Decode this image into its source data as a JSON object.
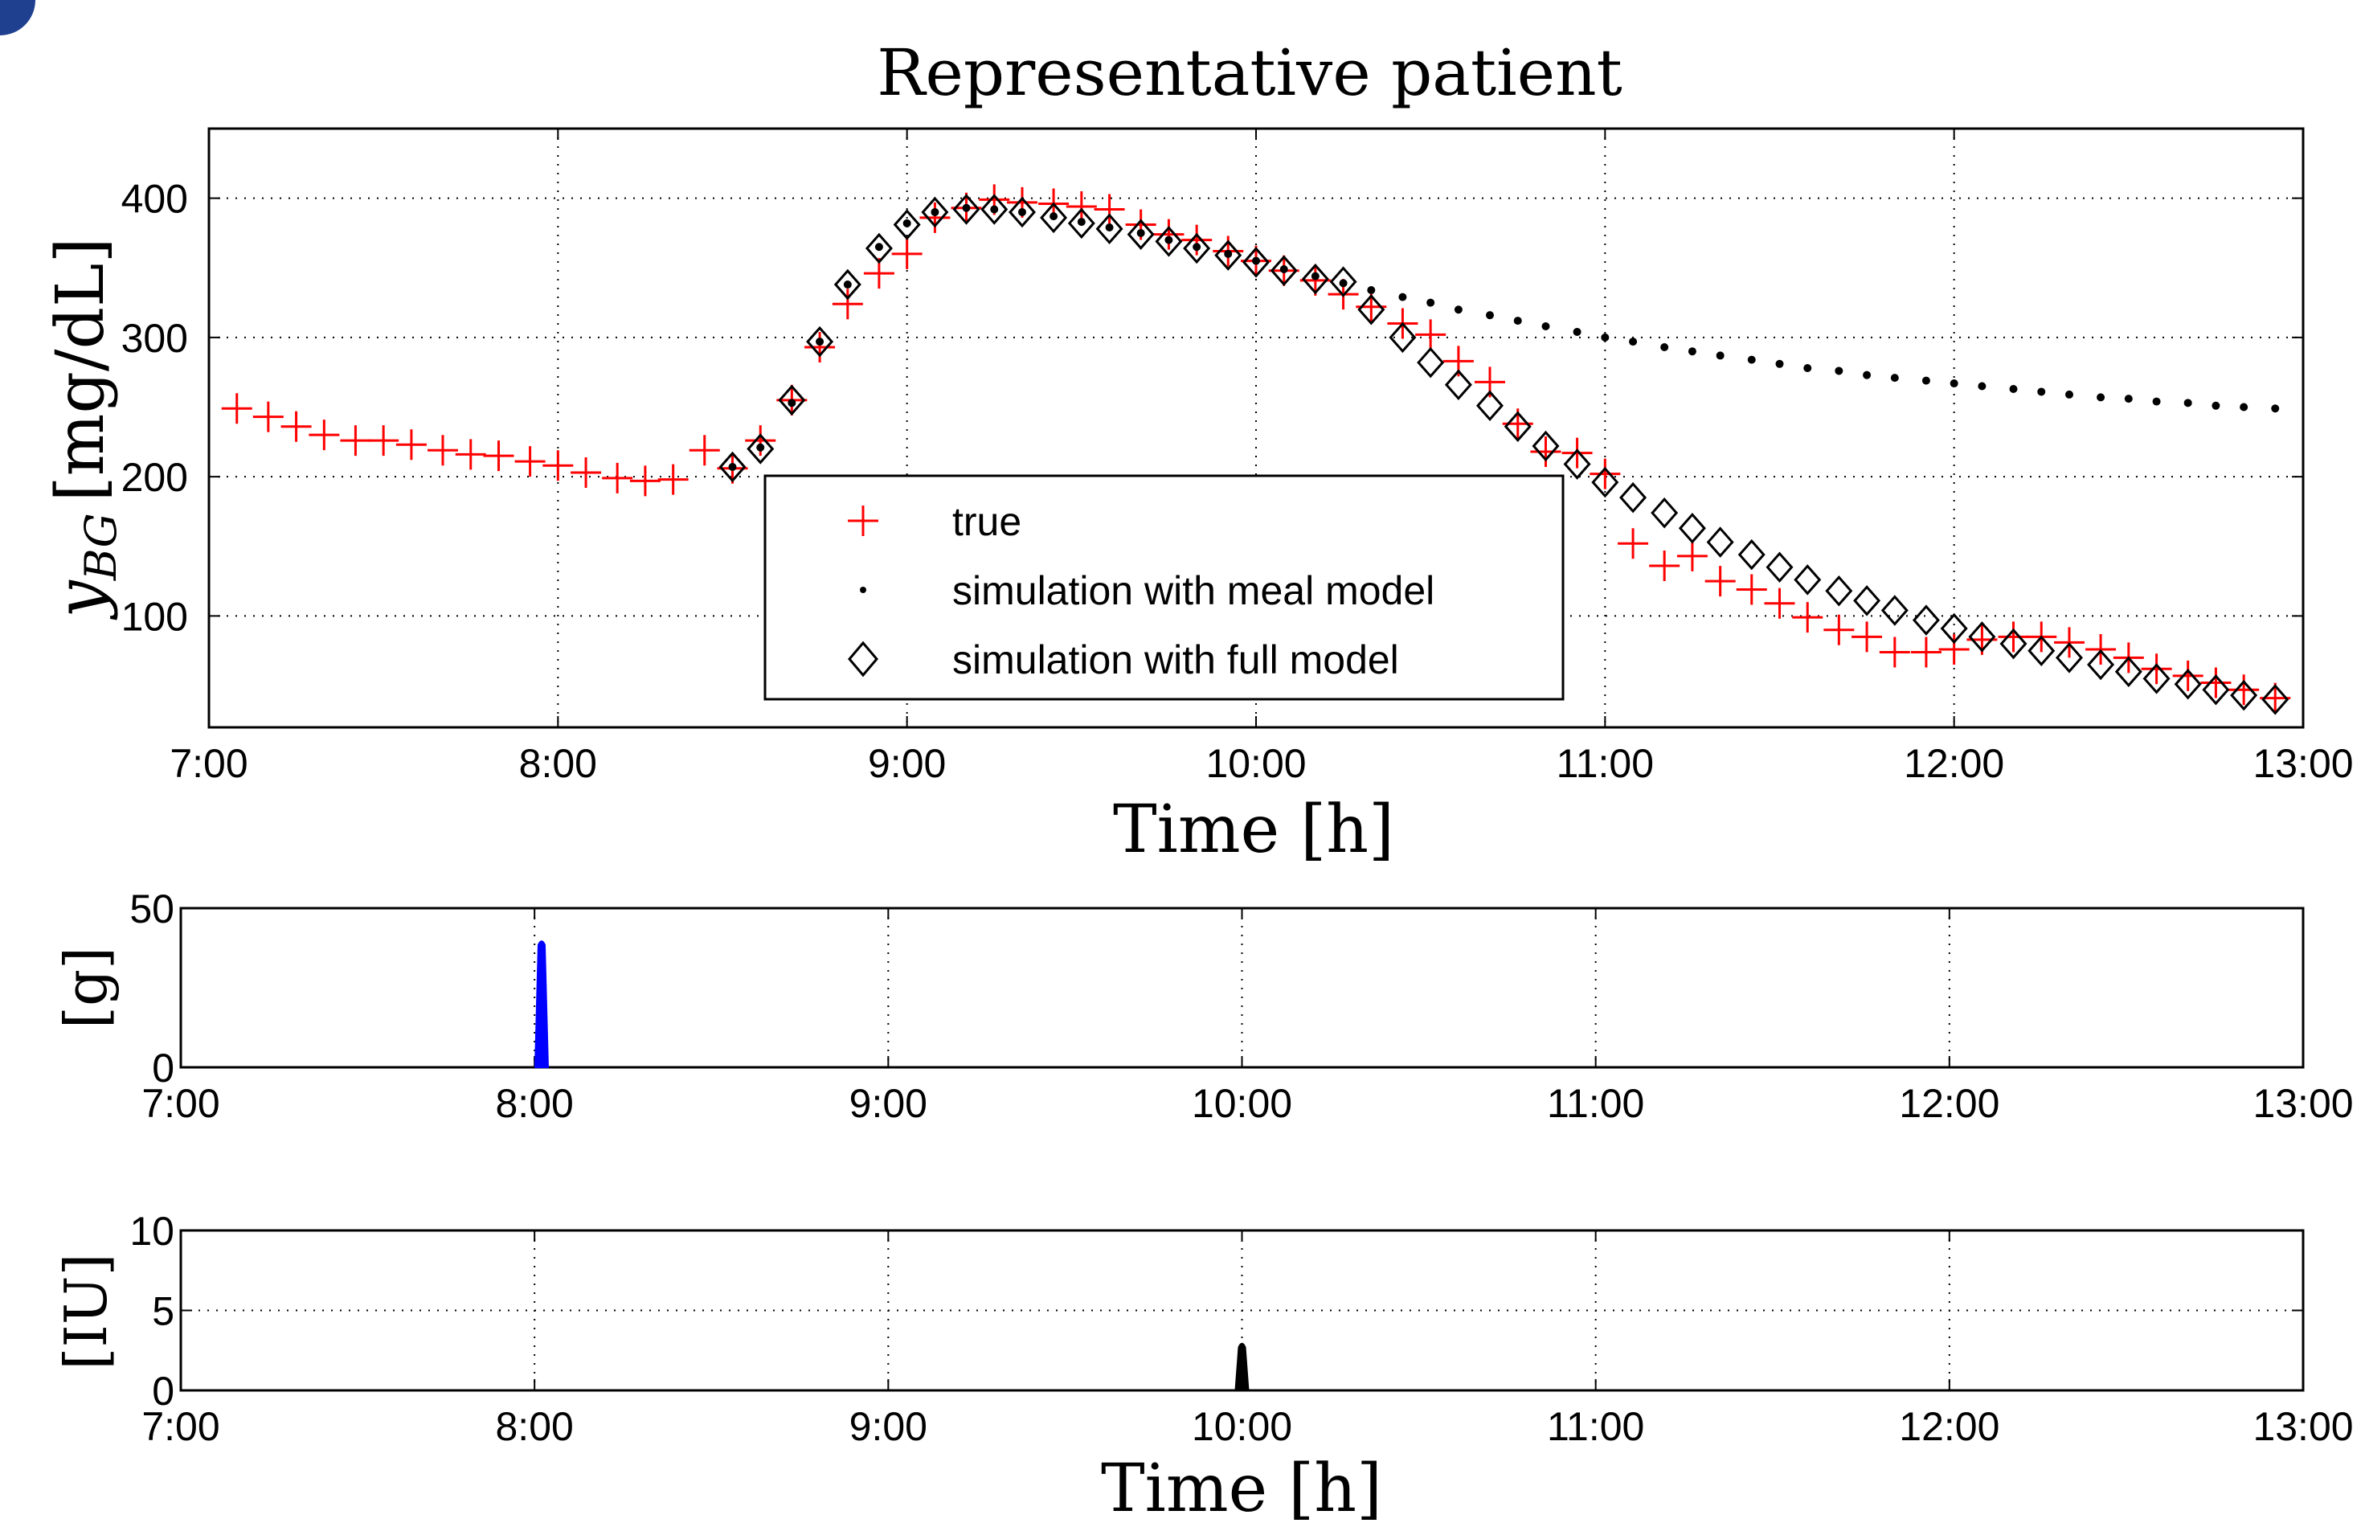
{
  "chart_data": [
    {
      "type": "scatter",
      "title": "Representative patient",
      "xlabel": "Time [h]",
      "ylabel_main": "y",
      "ylabel_sub": "BG",
      "ylabel_unit": "[mg/dL]",
      "x_ticks": [
        7,
        8,
        9,
        10,
        11,
        12,
        13
      ],
      "x_tick_labels": [
        "7:00",
        "8:00",
        "9:00",
        "10:00",
        "11:00",
        "12:00",
        "13:00"
      ],
      "xlim": [
        7,
        13
      ],
      "ylim": [
        20,
        450
      ],
      "y_ticks": [
        100,
        200,
        300,
        400
      ],
      "y_tick_labels": [
        "100",
        "200",
        "300",
        "400"
      ],
      "grid": true,
      "legend_position": "center",
      "series": [
        {
          "name": "true",
          "marker": "plus",
          "color": "#ff0000",
          "points": [
            [
              7.08,
              249
            ],
            [
              7.17,
              243
            ],
            [
              7.25,
              236
            ],
            [
              7.33,
              230
            ],
            [
              7.42,
              226
            ],
            [
              7.5,
              226
            ],
            [
              7.58,
              223
            ],
            [
              7.67,
              219
            ],
            [
              7.75,
              216
            ],
            [
              7.83,
              215
            ],
            [
              7.92,
              211
            ],
            [
              8,
              208
            ],
            [
              8.08,
              203
            ],
            [
              8.17,
              199
            ],
            [
              8.25,
              197
            ],
            [
              8.33,
              198
            ],
            [
              8.42,
              219
            ],
            [
              8.5,
              206
            ],
            [
              8.58,
              226
            ],
            [
              8.67,
              255
            ],
            [
              8.75,
              293
            ],
            [
              8.83,
              324
            ],
            [
              8.92,
              346
            ],
            [
              9,
              360
            ],
            [
              9.08,
              386
            ],
            [
              9.17,
              393
            ],
            [
              9.25,
              399
            ],
            [
              9.33,
              397
            ],
            [
              9.42,
              396
            ],
            [
              9.5,
              394
            ],
            [
              9.58,
              392
            ],
            [
              9.67,
              381
            ],
            [
              9.75,
              374
            ],
            [
              9.83,
              370
            ],
            [
              9.92,
              362
            ],
            [
              10,
              355
            ],
            [
              10.08,
              348
            ],
            [
              10.17,
              341
            ],
            [
              10.25,
              331
            ],
            [
              10.33,
              322
            ],
            [
              10.42,
              310
            ],
            [
              10.5,
              302
            ],
            [
              10.58,
              283
            ],
            [
              10.67,
              268
            ],
            [
              10.75,
              238
            ],
            [
              10.83,
              218
            ],
            [
              10.92,
              217
            ],
            [
              11,
              202
            ],
            [
              11.08,
              152
            ],
            [
              11.17,
              136
            ],
            [
              11.25,
              143
            ],
            [
              11.33,
              125
            ],
            [
              11.42,
              119
            ],
            [
              11.5,
              109
            ],
            [
              11.58,
              99
            ],
            [
              11.67,
              90
            ],
            [
              11.75,
              85
            ],
            [
              11.83,
              74
            ],
            [
              11.92,
              74
            ],
            [
              12,
              76
            ],
            [
              12.08,
              83
            ],
            [
              12.17,
              85
            ],
            [
              12.25,
              85
            ],
            [
              12.33,
              81
            ],
            [
              12.42,
              76
            ],
            [
              12.5,
              70
            ],
            [
              12.58,
              62
            ],
            [
              12.67,
              57
            ],
            [
              12.75,
              52
            ],
            [
              12.83,
              47
            ],
            [
              12.92,
              41
            ]
          ]
        },
        {
          "name": "simulation with meal model",
          "marker": "dot",
          "color": "#000000",
          "points": [
            [
              8.5,
              207
            ],
            [
              8.58,
              221
            ],
            [
              8.67,
              253
            ],
            [
              8.75,
              297
            ],
            [
              8.83,
              338
            ],
            [
              8.92,
              365
            ],
            [
              9,
              382
            ],
            [
              9.08,
              390
            ],
            [
              9.17,
              393
            ],
            [
              9.25,
              392
            ],
            [
              9.33,
              390
            ],
            [
              9.42,
              387
            ],
            [
              9.5,
              383
            ],
            [
              9.58,
              379
            ],
            [
              9.67,
              375
            ],
            [
              9.75,
              370
            ],
            [
              9.83,
              365
            ],
            [
              9.92,
              360
            ],
            [
              10,
              355
            ],
            [
              10.08,
              349
            ],
            [
              10.17,
              344
            ],
            [
              10.25,
              339
            ],
            [
              10.33,
              334
            ],
            [
              10.42,
              329
            ],
            [
              10.5,
              325
            ],
            [
              10.58,
              320
            ],
            [
              10.67,
              316
            ],
            [
              10.75,
              312
            ],
            [
              10.83,
              308
            ],
            [
              10.92,
              304
            ],
            [
              11,
              300
            ],
            [
              11.08,
              297
            ],
            [
              11.17,
              293
            ],
            [
              11.25,
              290
            ],
            [
              11.33,
              287
            ],
            [
              11.42,
              284
            ],
            [
              11.5,
              281
            ],
            [
              11.58,
              278
            ],
            [
              11.67,
              276
            ],
            [
              11.75,
              273
            ],
            [
              11.83,
              271
            ],
            [
              11.92,
              269
            ],
            [
              12,
              267
            ],
            [
              12.08,
              265
            ],
            [
              12.17,
              263
            ],
            [
              12.25,
              261
            ],
            [
              12.33,
              259
            ],
            [
              12.42,
              257
            ],
            [
              12.5,
              256
            ],
            [
              12.58,
              254
            ],
            [
              12.67,
              253
            ],
            [
              12.75,
              251
            ],
            [
              12.83,
              250
            ],
            [
              12.92,
              249
            ]
          ]
        },
        {
          "name": "simulation with full model",
          "marker": "diamond",
          "color": "#000000",
          "points": [
            [
              8.5,
              207
            ],
            [
              8.58,
              220
            ],
            [
              8.67,
              255
            ],
            [
              8.75,
              297
            ],
            [
              8.83,
              338
            ],
            [
              8.92,
              364
            ],
            [
              9,
              381
            ],
            [
              9.08,
              390
            ],
            [
              9.17,
              392
            ],
            [
              9.25,
              392
            ],
            [
              9.33,
              390
            ],
            [
              9.42,
              386
            ],
            [
              9.5,
              382
            ],
            [
              9.58,
              378
            ],
            [
              9.67,
              374
            ],
            [
              9.75,
              369
            ],
            [
              9.83,
              364
            ],
            [
              9.92,
              359
            ],
            [
              10,
              354
            ],
            [
              10.08,
              348
            ],
            [
              10.17,
              342
            ],
            [
              10.25,
              340
            ],
            [
              10.33,
              320
            ],
            [
              10.42,
              300
            ],
            [
              10.5,
              282
            ],
            [
              10.58,
              266
            ],
            [
              10.67,
              251
            ],
            [
              10.75,
              236
            ],
            [
              10.83,
              222
            ],
            [
              10.92,
              209
            ],
            [
              11,
              196
            ],
            [
              11.08,
              185
            ],
            [
              11.17,
              174
            ],
            [
              11.25,
              163
            ],
            [
              11.33,
              153
            ],
            [
              11.42,
              144
            ],
            [
              11.5,
              135
            ],
            [
              11.58,
              126
            ],
            [
              11.67,
              118
            ],
            [
              11.75,
              111
            ],
            [
              11.83,
              104
            ],
            [
              11.92,
              97
            ],
            [
              12,
              91
            ],
            [
              12.08,
              85
            ],
            [
              12.17,
              80
            ],
            [
              12.25,
              75
            ],
            [
              12.33,
              70
            ],
            [
              12.42,
              65
            ],
            [
              12.5,
              60
            ],
            [
              12.58,
              55
            ],
            [
              12.67,
              51
            ],
            [
              12.75,
              47
            ],
            [
              12.83,
              43
            ],
            [
              12.92,
              40
            ]
          ]
        }
      ]
    },
    {
      "type": "bar",
      "ylabel": "[g]",
      "xlim": [
        7,
        13
      ],
      "ylim": [
        0,
        50
      ],
      "y_ticks": [
        0,
        50
      ],
      "y_tick_labels": [
        "0",
        "50"
      ],
      "x_ticks": [
        7,
        8,
        9,
        10,
        11,
        12,
        13
      ],
      "x_tick_labels": [
        "7:00",
        "8:00",
        "9:00",
        "10:00",
        "11:00",
        "12:00",
        "13:00"
      ],
      "grid": true,
      "pulses": [
        {
          "x": 8.02,
          "value": 40,
          "color": "#0000ff"
        }
      ]
    },
    {
      "type": "bar",
      "ylabel": "[IU]",
      "xlabel": "Time [h]",
      "xlim": [
        7,
        13
      ],
      "ylim": [
        0,
        10
      ],
      "y_ticks": [
        0,
        5,
        10
      ],
      "y_tick_labels": [
        "0",
        "5",
        "10"
      ],
      "x_ticks": [
        7,
        8,
        9,
        10,
        11,
        12,
        13
      ],
      "x_tick_labels": [
        "7:00",
        "8:00",
        "9:00",
        "10:00",
        "11:00",
        "12:00",
        "13:00"
      ],
      "grid": true,
      "pulses": [
        {
          "x": 10.0,
          "value": 3,
          "color": "#000000"
        }
      ]
    }
  ]
}
